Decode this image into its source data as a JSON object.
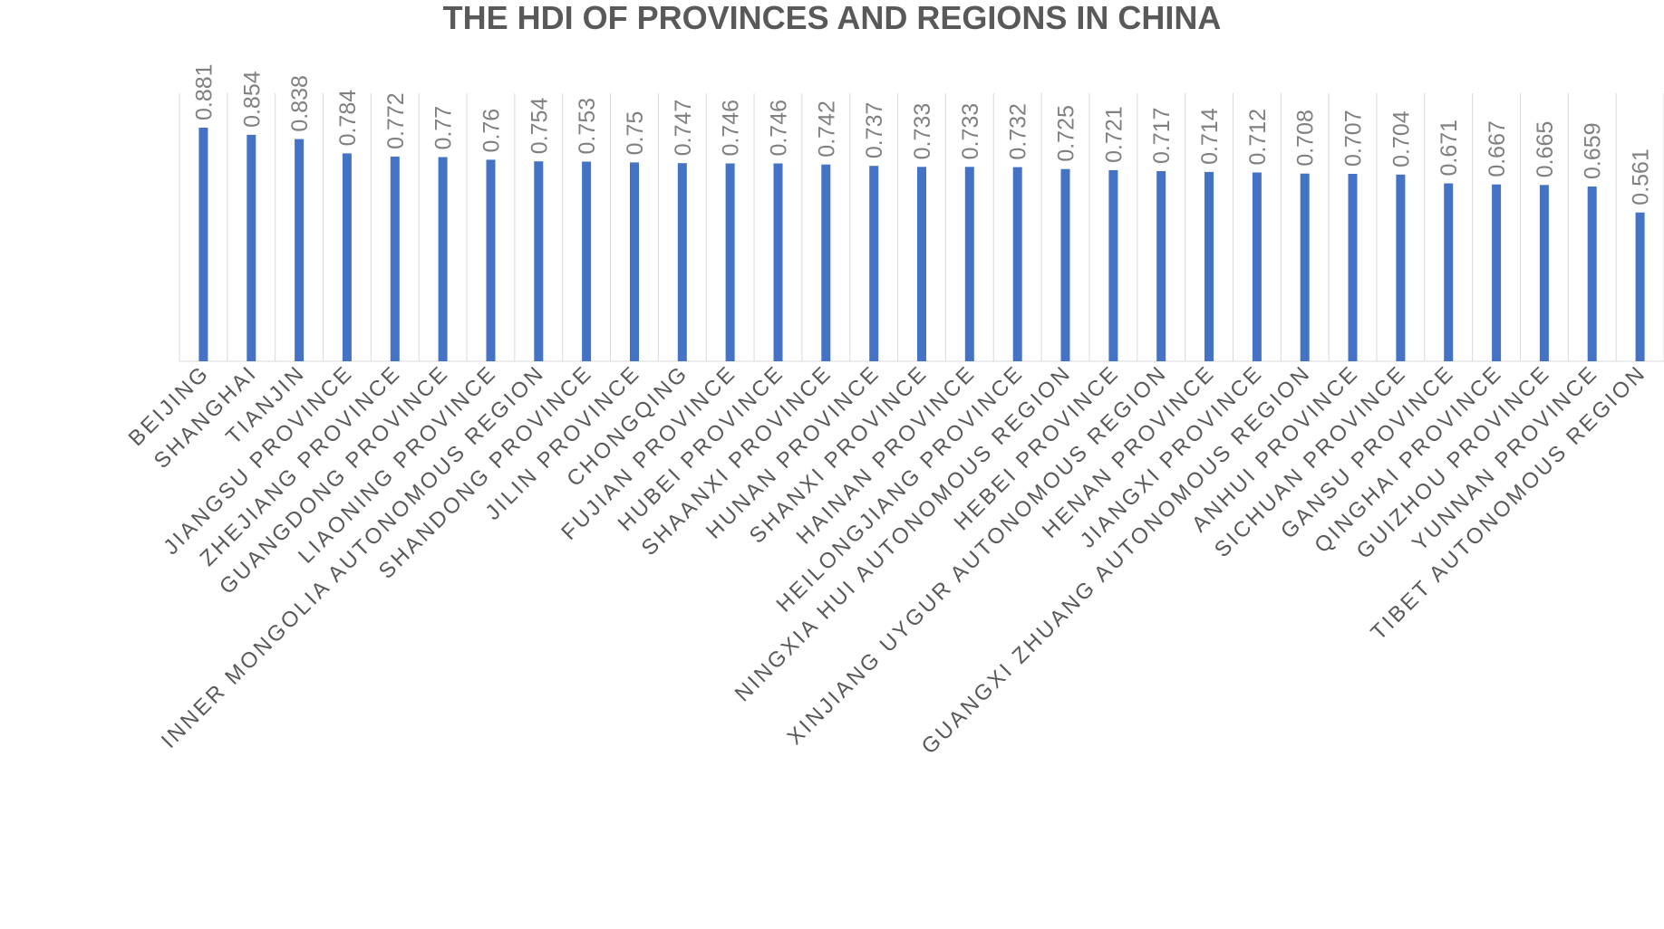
{
  "chart_data": {
    "type": "bar",
    "title": "THE HDI OF PROVINCES AND REGIONS IN CHINA",
    "xlabel": "",
    "ylabel": "",
    "ylim": [
      0,
      1
    ],
    "grid": "vertical category separators",
    "legend": "none",
    "bar_color": "#4472c4",
    "categories": [
      "BEIJING",
      "SHANGHAI",
      "TIANJIN",
      "JIANGSU PROVINCE",
      "ZHEJIANG PROVINCE",
      "GUANGDONG PROVINCE",
      "LIAONING PROVINCE",
      "INNER MONGOLIA AUTONOMOUS REGION",
      "SHANDONG PROVINCE",
      "JILIN PROVINCE",
      "CHONGQING",
      "FUJIAN PROVINCE",
      "HUBEI PROVINCE",
      "SHAANXI PROVINCE",
      "HUNAN PROVINCE",
      "SHANXI PROVINCE",
      "HAINAN PROVINCE",
      "HEILONGJIANG PROVINCE",
      "NINGXIA HUI AUTONOMOUS REGION",
      "HEBEI PROVINCE",
      "XINJIANG UYGUR AUTONOMOUS REGION",
      "HENAN PROVINCE",
      "JIANGXI PROVINCE",
      "GUANGXI ZHUANG AUTONOMOUS REGION",
      "ANHUI PROVINCE",
      "SICHUAN PROVINCE",
      "GANSU PROVINCE",
      "QINGHAI PROVINCE",
      "GUIZHOU PROVINCE",
      "YUNNAN PROVINCE",
      "TIBET AUTONOMOUS REGION"
    ],
    "values": [
      0.881,
      0.854,
      0.838,
      0.784,
      0.772,
      0.77,
      0.76,
      0.754,
      0.753,
      0.75,
      0.747,
      0.746,
      0.746,
      0.742,
      0.737,
      0.733,
      0.733,
      0.732,
      0.725,
      0.721,
      0.717,
      0.714,
      0.712,
      0.708,
      0.707,
      0.704,
      0.671,
      0.667,
      0.665,
      0.659,
      0.561
    ],
    "data_labels": [
      "0.881",
      "0.854",
      "0.838",
      "0.784",
      "0.772",
      "0.77",
      "0.76",
      "0.754",
      "0.753",
      "0.75",
      "0.747",
      "0.746",
      "0.746",
      "0.742",
      "0.737",
      "0.733",
      "0.733",
      "0.732",
      "0.725",
      "0.721",
      "0.717",
      "0.714",
      "0.712",
      "0.708",
      "0.707",
      "0.704",
      "0.671",
      "0.667",
      "0.665",
      "0.659",
      "0.561"
    ]
  }
}
